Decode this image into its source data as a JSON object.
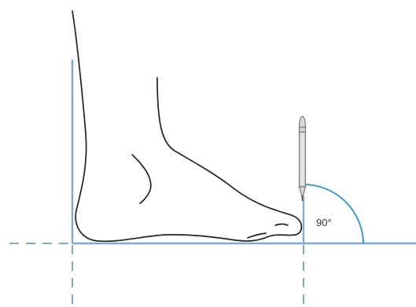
{
  "diagram": {
    "angle_label": "90°",
    "colors": {
      "reference_line": "#7fa9d3",
      "angle_arc": "#3a9ad0",
      "outline": "#222222",
      "pencil_body": "#d7d7d7",
      "pencil_edge": "#7a7a7a",
      "text": "#333333"
    },
    "icons": {
      "pencil": "pencil-icon"
    }
  }
}
